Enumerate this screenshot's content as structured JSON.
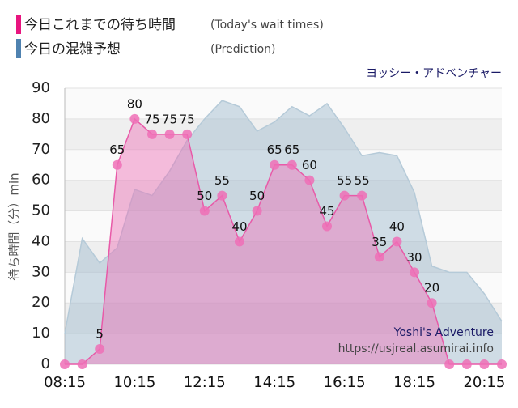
{
  "legend": [
    {
      "label": "今日これまでの待ち時間",
      "note": "(Today's wait times)",
      "color": "#e8157f"
    },
    {
      "label": "今日の混雑予想",
      "note": "(Prediction)",
      "color": "#4f82b0"
    }
  ],
  "watermark": [
    "Yoshi's Adventure",
    "https://usjreal.asumirai.info"
  ],
  "chart_data": {
    "type": "area",
    "title": "ヨッシー・アドベンチャー",
    "y_label": "待ち時間（分）min",
    "x": [
      "08:15",
      "08:45",
      "09:15",
      "09:45",
      "10:15",
      "10:45",
      "11:15",
      "11:45",
      "12:15",
      "12:45",
      "13:15",
      "13:45",
      "14:15",
      "14:45",
      "15:15",
      "15:45",
      "16:15",
      "16:45",
      "17:15",
      "17:45",
      "18:15",
      "18:45",
      "19:15",
      "19:45",
      "20:15",
      "20:45"
    ],
    "xlim": [
      "08:15",
      "20:45"
    ],
    "xticks": [
      "08:15",
      "10:15",
      "12:15",
      "14:15",
      "16:15",
      "18:15",
      "20:15"
    ],
    "ylim": [
      0,
      90
    ],
    "yticks": [
      0,
      10,
      20,
      30,
      40,
      50,
      60,
      70,
      80,
      90
    ],
    "grid": true,
    "series": [
      {
        "name": "今日の混雑予想",
        "color": "#9bb8cc",
        "values": [
          10,
          41,
          33,
          38,
          57,
          55,
          63,
          73,
          80,
          86,
          84,
          76,
          79,
          84,
          81,
          85,
          77,
          68,
          69,
          68,
          56,
          32,
          30,
          30,
          23,
          14
        ]
      },
      {
        "name": "今日これまでの待ち時間",
        "color": "#ee6fb6",
        "values": [
          0,
          0,
          5,
          65,
          80,
          75,
          75,
          75,
          50,
          55,
          40,
          50,
          65,
          65,
          60,
          45,
          55,
          55,
          35,
          40,
          30,
          20,
          0,
          0,
          0,
          0
        ]
      }
    ]
  }
}
